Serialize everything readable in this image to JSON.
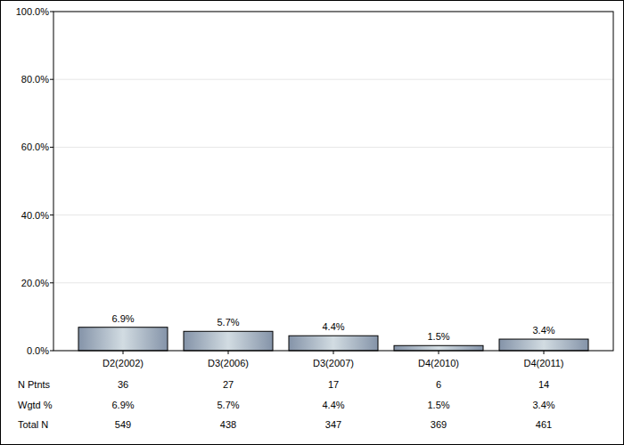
{
  "chart_data": {
    "type": "bar",
    "categories": [
      "D2(2002)",
      "D3(2006)",
      "D3(2007)",
      "D4(2010)",
      "D4(2011)"
    ],
    "values": [
      6.9,
      5.7,
      4.4,
      1.5,
      3.4
    ],
    "value_labels": [
      "6.9%",
      "5.7%",
      "4.4%",
      "1.5%",
      "3.4%"
    ],
    "data_labels": true,
    "ylim": [
      0,
      100
    ],
    "yticks": [
      {
        "value": 0,
        "label": "0.0%"
      },
      {
        "value": 20,
        "label": "20.0%"
      },
      {
        "value": 40,
        "label": "40.0%"
      },
      {
        "value": 60,
        "label": "60.0%"
      },
      {
        "value": 80,
        "label": "80.0%"
      },
      {
        "value": 100,
        "label": "100.0%"
      }
    ],
    "grid": true,
    "table": {
      "rows": [
        {
          "label": "N Ptnts",
          "values": [
            36,
            27,
            17,
            6,
            14
          ]
        },
        {
          "label": "Wgtd %",
          "values": [
            6.9,
            5.7,
            4.4,
            1.5,
            3.4
          ],
          "value_labels": [
            "6.9%",
            "5.7%",
            "4.4%",
            "1.5%",
            "3.4%"
          ]
        },
        {
          "label": "Total N",
          "values": [
            549,
            438,
            347,
            369,
            461
          ]
        }
      ]
    }
  }
}
